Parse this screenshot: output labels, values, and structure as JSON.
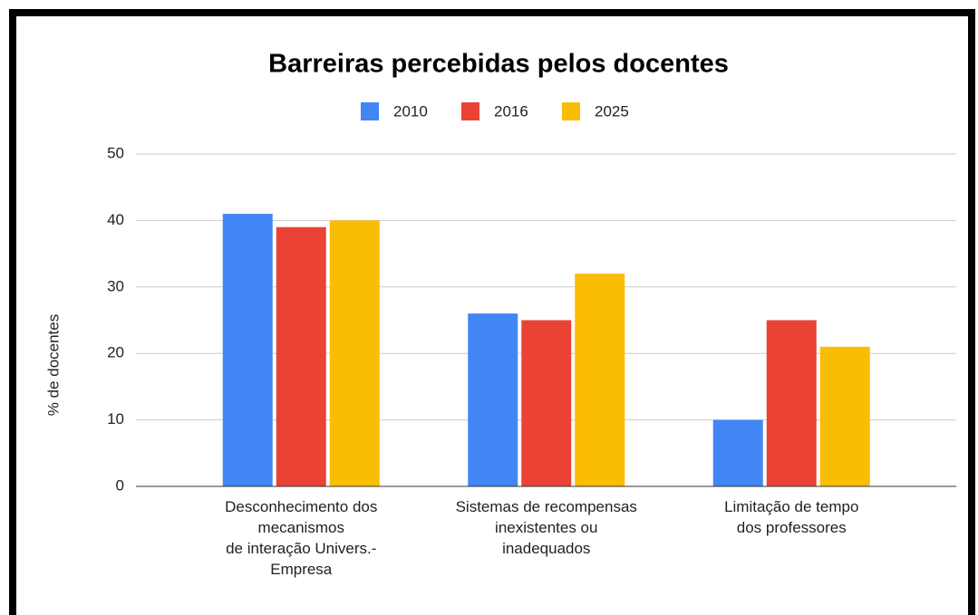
{
  "chart_data": {
    "type": "bar",
    "title": "Barreiras percebidas pelos docentes",
    "y_label": "% de docentes",
    "categories": [
      "Desconhecimento  dos\nmecanismos\nde interação Univers.-\nEmpresa",
      "Sistemas de recompensas\ninexistentes ou\ninadequados",
      "Limitação de tempo\ndos professores"
    ],
    "series": [
      {
        "name": "2010",
        "color": "#4285f4",
        "values": [
          41,
          26,
          10
        ]
      },
      {
        "name": "2016",
        "color": "#ea4335",
        "values": [
          39,
          25,
          25
        ]
      },
      {
        "name": "2025",
        "color": "#fbbc04",
        "values": [
          40,
          32,
          21
        ]
      }
    ],
    "ylim": [
      0,
      50
    ],
    "yticks": [
      0,
      10,
      20,
      30,
      40,
      50
    ],
    "grid": true,
    "legend": "top"
  }
}
